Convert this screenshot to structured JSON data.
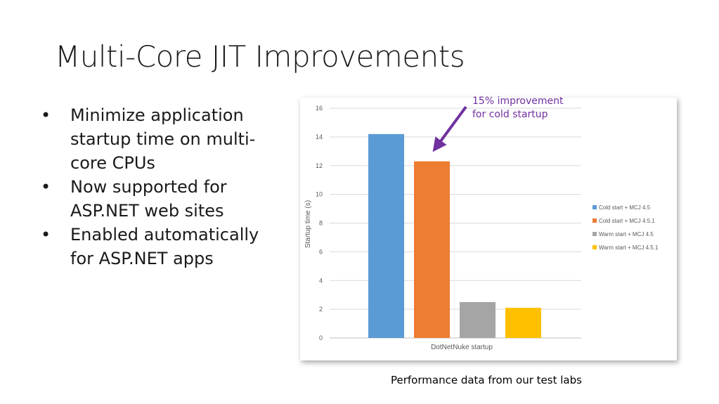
{
  "slide": {
    "title": "Multi-Core JIT Improvements",
    "bullets": [
      "Minimize application startup time on multi-core CPUs",
      "Now supported for ASP.NET web sites",
      "Enabled automatically for ASP.NET apps"
    ],
    "bullet_glyph": "•",
    "annotation_lines": [
      "15% improvement",
      "for cold startup"
    ],
    "annotation_color": "#7030a0",
    "caption": "Performance data from our test labs"
  },
  "chart_data": {
    "type": "bar",
    "title": "",
    "xlabel": "DotNetNuke startup",
    "ylabel": "Startup time (s)",
    "ylim": [
      0,
      16
    ],
    "yticks": [
      0,
      2,
      4,
      6,
      8,
      10,
      12,
      14,
      16
    ],
    "grid": true,
    "legend_position": "right",
    "categories": [
      "DotNetNuke startup"
    ],
    "series": [
      {
        "name": "Cold start + MCJ 4.5",
        "values": [
          14.2
        ],
        "color": "#5b9bd5"
      },
      {
        "name": "Cold start + MCJ 4.5.1",
        "values": [
          12.3
        ],
        "color": "#ed7d31"
      },
      {
        "name": "Warm start + MCJ 4.5",
        "values": [
          2.5
        ],
        "color": "#a5a5a5"
      },
      {
        "name": "Warm start + MCJ 4.5.1",
        "values": [
          2.1
        ],
        "color": "#ffc000"
      }
    ]
  }
}
